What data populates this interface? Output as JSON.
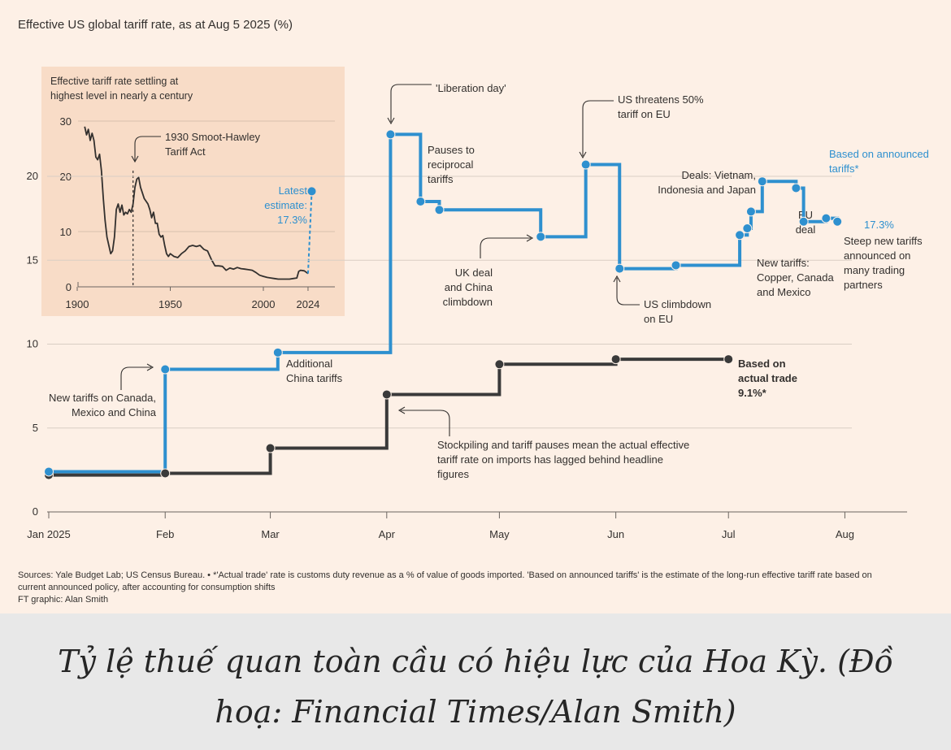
{
  "title": "Effective US global tariff rate, as at Aug 5 2025 (%)",
  "colors": {
    "background": "#fdf0e6",
    "announced": "#2e90cf",
    "actual": "#3a3a3a",
    "inset_bg": "#f8dcc7",
    "grid": "#d9cec4",
    "text": "#33302e",
    "caption_bg": "#e8e8e8"
  },
  "chart_data": [
    {
      "type": "line",
      "title": "Effective US global tariff rate, as at Aug 5 2025 (%)",
      "x_axis": {
        "ticks": [
          "Jan 2025",
          "Feb",
          "Mar",
          "Apr",
          "May",
          "Jun",
          "Jul",
          "Aug"
        ],
        "range_days": [
          0,
          222
        ]
      },
      "y_axis": {
        "ticks": [
          0,
          5,
          10,
          15,
          20
        ],
        "range": [
          0,
          25
        ]
      },
      "grid": true,
      "series": [
        {
          "name": "Based on announced tariffs*",
          "label": "Based on announced tariffs*",
          "style": "step",
          "points": [
            {
              "day": 0,
              "value": 2.4
            },
            {
              "day": 31,
              "value": 8.5
            },
            {
              "day": 61,
              "value": 9.5
            },
            {
              "day": 91,
              "value": 22.5
            },
            {
              "day": 99,
              "value": 18.5
            },
            {
              "day": 104,
              "value": 18.0
            },
            {
              "day": 131,
              "value": 16.4
            },
            {
              "day": 143,
              "value": 20.7
            },
            {
              "day": 152,
              "value": 14.5
            },
            {
              "day": 167,
              "value": 14.7
            },
            {
              "day": 184,
              "value": 16.5
            },
            {
              "day": 186,
              "value": 16.9
            },
            {
              "day": 187,
              "value": 17.9
            },
            {
              "day": 190,
              "value": 19.7
            },
            {
              "day": 199,
              "value": 19.3
            },
            {
              "day": 201,
              "value": 17.3
            },
            {
              "day": 207,
              "value": 17.5
            },
            {
              "day": 210,
              "value": 17.3
            }
          ]
        },
        {
          "name": "Based on actual trade",
          "label": "Based on actual trade",
          "style": "step",
          "end_label": "9.1%*",
          "points": [
            {
              "day": 0,
              "value": 2.2
            },
            {
              "day": 31,
              "value": 2.3
            },
            {
              "day": 59,
              "value": 3.8
            },
            {
              "day": 90,
              "value": 7.0
            },
            {
              "day": 120,
              "value": 8.8
            },
            {
              "day": 151,
              "value": 9.1
            },
            {
              "day": 181,
              "value": 9.1
            }
          ]
        }
      ],
      "end_value_label": "17.3%",
      "annotations": [
        {
          "id": "new-tariffs",
          "lines": [
            "New tariffs on Canada,",
            "Mexico and China"
          ]
        },
        {
          "id": "additional-china",
          "lines": [
            "Additional",
            "China tariffs"
          ]
        },
        {
          "id": "liberation-day",
          "lines": [
            "'Liberation day'"
          ]
        },
        {
          "id": "pauses",
          "lines": [
            "Pauses to",
            "reciprocal",
            "tariffs"
          ]
        },
        {
          "id": "uk-deal",
          "lines": [
            "UK deal",
            "and China",
            "climbdown"
          ]
        },
        {
          "id": "us-threatens",
          "lines": [
            "US threatens 50%",
            "tariff on EU"
          ]
        },
        {
          "id": "us-climbdown",
          "lines": [
            "US climbdown",
            "on EU"
          ]
        },
        {
          "id": "deals",
          "lines": [
            "Deals: Vietnam,",
            "Indonesia and Japan"
          ]
        },
        {
          "id": "new-tariffs-copper",
          "lines": [
            "New tariffs:",
            "Copper, Canada",
            "and Mexico"
          ]
        },
        {
          "id": "eu-deal",
          "lines": [
            "EU",
            "deal"
          ]
        },
        {
          "id": "steep",
          "lines": [
            "Steep new tariffs",
            "announced on",
            "many trading",
            "partners"
          ]
        },
        {
          "id": "stockpiling",
          "lines": [
            "Stockpiling and tariff pauses mean the actual effective",
            "tariff rate on imports has lagged behind headline",
            "figures"
          ]
        }
      ]
    },
    {
      "type": "line",
      "title": "Effective tariff rate settling at highest level in nearly a century",
      "title_lines": [
        "Effective tariff rate settling at",
        "highest level in nearly a century"
      ],
      "x_axis": {
        "ticks": [
          "1900",
          "1950",
          "2000",
          "2024"
        ],
        "range": [
          1900,
          2030
        ]
      },
      "y_axis": {
        "ticks": [
          0,
          10,
          20,
          30
        ],
        "range": [
          0,
          32
        ]
      },
      "grid": true,
      "annotation_smoot": [
        "1930 Smoot-Hawley",
        "Tariff Act"
      ],
      "annotation_latest": [
        "Latest",
        "estimate:",
        "17.3%"
      ],
      "latest_value": 17.3,
      "series": [
        {
          "name": "Historical effective tariff rate",
          "points": [
            [
              1904,
              29
            ],
            [
              1905,
              27.5
            ],
            [
              1906,
              28.5
            ],
            [
              1907,
              26.5
            ],
            [
              1908,
              27.8
            ],
            [
              1909,
              26.5
            ],
            [
              1910,
              23.5
            ],
            [
              1911,
              23
            ],
            [
              1912,
              24
            ],
            [
              1913,
              21
            ],
            [
              1914,
              16
            ],
            [
              1915,
              12
            ],
            [
              1916,
              9
            ],
            [
              1917,
              7.5
            ],
            [
              1918,
              6
            ],
            [
              1919,
              6.5
            ],
            [
              1920,
              9
            ],
            [
              1921,
              14
            ],
            [
              1922,
              15
            ],
            [
              1923,
              13.5
            ],
            [
              1924,
              14.8
            ],
            [
              1925,
              13
            ],
            [
              1926,
              13.5
            ],
            [
              1927,
              13.2
            ],
            [
              1928,
              14
            ],
            [
              1929,
              13.5
            ],
            [
              1930,
              15
            ],
            [
              1931,
              18
            ],
            [
              1932,
              19.5
            ],
            [
              1933,
              19.8
            ],
            [
              1934,
              18
            ],
            [
              1935,
              17
            ],
            [
              1936,
              16
            ],
            [
              1937,
              15.5
            ],
            [
              1938,
              15
            ],
            [
              1939,
              14
            ],
            [
              1940,
              12.5
            ],
            [
              1941,
              13.5
            ],
            [
              1942,
              11.5
            ],
            [
              1943,
              11.5
            ],
            [
              1944,
              9.5
            ],
            [
              1945,
              9
            ],
            [
              1946,
              9.3
            ],
            [
              1947,
              7.5
            ],
            [
              1948,
              6
            ],
            [
              1949,
              5.5
            ],
            [
              1950,
              6
            ],
            [
              1952,
              5.5
            ],
            [
              1954,
              5.3
            ],
            [
              1956,
              6
            ],
            [
              1958,
              6.5
            ],
            [
              1960,
              7.3
            ],
            [
              1962,
              7.5
            ],
            [
              1964,
              7.3
            ],
            [
              1966,
              7.5
            ],
            [
              1968,
              6.8
            ],
            [
              1970,
              6.5
            ],
            [
              1972,
              5
            ],
            [
              1974,
              3.8
            ],
            [
              1976,
              3.8
            ],
            [
              1978,
              3.7
            ],
            [
              1980,
              3
            ],
            [
              1982,
              3.4
            ],
            [
              1984,
              3.2
            ],
            [
              1986,
              3.5
            ],
            [
              1988,
              3.3
            ],
            [
              1990,
              3.2
            ],
            [
              1992,
              3.1
            ],
            [
              1994,
              3
            ],
            [
              1996,
              2.6
            ],
            [
              1998,
              2.1
            ],
            [
              2000,
              1.9
            ],
            [
              2002,
              1.7
            ],
            [
              2004,
              1.6
            ],
            [
              2006,
              1.5
            ],
            [
              2008,
              1.4
            ],
            [
              2010,
              1.4
            ],
            [
              2012,
              1.4
            ],
            [
              2014,
              1.4
            ],
            [
              2016,
              1.5
            ],
            [
              2018,
              1.6
            ],
            [
              2019,
              2.8
            ],
            [
              2020,
              3
            ],
            [
              2022,
              2.9
            ],
            [
              2024,
              2.4
            ]
          ]
        }
      ]
    }
  ],
  "sources": {
    "line1": "Sources: Yale Budget Lab; US Census Bureau. • *'Actual trade' rate is customs duty revenue as a % of value of goods imported. 'Based on announced tariffs' is the estimate of the long-run effective tariff rate based on",
    "line2": "current announced policy, after accounting for consumption shifts",
    "credit": "FT graphic: Alan Smith"
  },
  "caption": "Tỷ lệ thuế quan toàn cầu có hiệu lực của Hoa Kỳ. (Đồ hoạ: Financial Times/Alan Smith)"
}
